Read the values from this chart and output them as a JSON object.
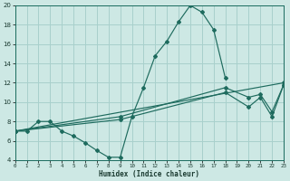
{
  "xlabel": "Humidex (Indice chaleur)",
  "background_color": "#cde8e4",
  "grid_color": "#a8d0cc",
  "line_color": "#1e6b5e",
  "xlim": [
    0,
    23
  ],
  "ylim": [
    4,
    20
  ],
  "xtick_vals": [
    0,
    1,
    2,
    3,
    4,
    5,
    6,
    7,
    8,
    9,
    10,
    11,
    12,
    13,
    14,
    15,
    16,
    17,
    18,
    19,
    20,
    21,
    22,
    23
  ],
  "ytick_vals": [
    4,
    6,
    8,
    10,
    12,
    14,
    16,
    18,
    20
  ],
  "curve_main_x": [
    0,
    1,
    2,
    3,
    4,
    5,
    6,
    7,
    8,
    9,
    10,
    11,
    12,
    13,
    14,
    15,
    16,
    17,
    18
  ],
  "curve_main_y": [
    7,
    7,
    8,
    8,
    7,
    6.5,
    5.8,
    5,
    4.3,
    4.3,
    8.5,
    11.5,
    14.8,
    16.3,
    18.3,
    20,
    19.3,
    17.5,
    12.5
  ],
  "curve_line1_x": [
    0,
    23
  ],
  "curve_line1_y": [
    7,
    12
  ],
  "curve_line2_x": [
    0,
    9,
    18,
    20,
    21,
    22,
    23
  ],
  "curve_line2_y": [
    7,
    8.5,
    11.5,
    10.5,
    10.8,
    9,
    11.8
  ],
  "curve_line3_x": [
    0,
    9,
    18,
    20,
    21,
    22,
    23
  ],
  "curve_line3_y": [
    7,
    8.2,
    11,
    9.5,
    10.5,
    8.5,
    11.8
  ]
}
